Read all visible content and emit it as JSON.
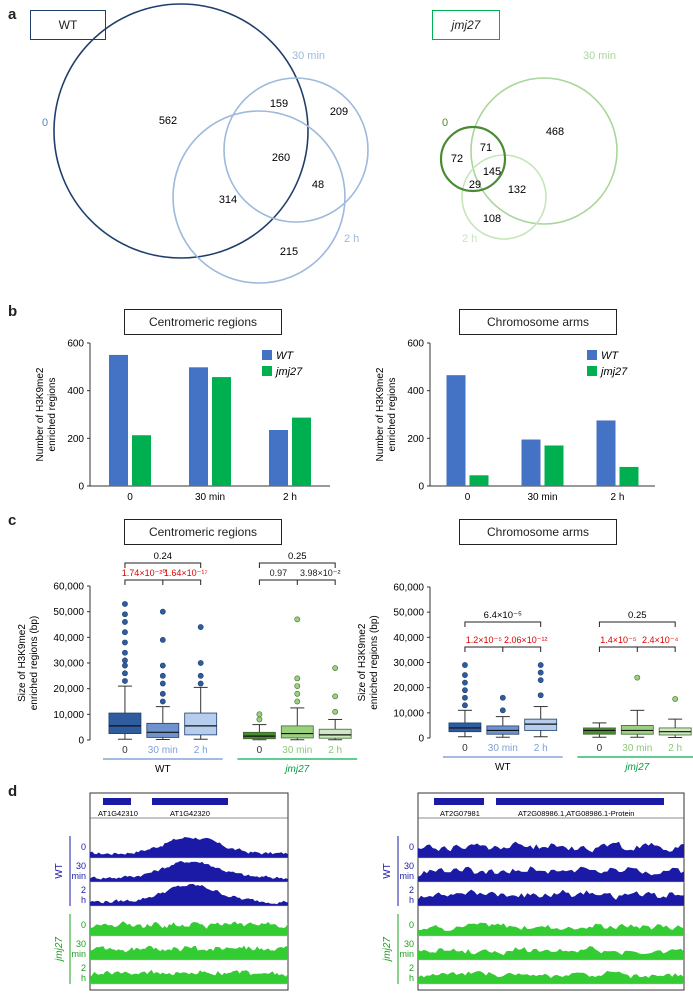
{
  "panel_labels": {
    "a": "a",
    "b": "b",
    "c": "c",
    "d": "d"
  },
  "panel_a": {
    "wt": {
      "title": "WT",
      "set_labels": {
        "s0": "0",
        "s30": "30 min",
        "s2h": "2 h"
      },
      "regions": {
        "only0": "562",
        "only30": "209",
        "only2h": "215",
        "c0_30": "159",
        "c0_2h": "314",
        "c30_2h": "48",
        "all": "260"
      }
    },
    "jmj": {
      "title": "jmj27",
      "set_labels": {
        "s0": "0",
        "s30": "30 min",
        "s2h": "2 h"
      },
      "regions": {
        "only0": "72",
        "only30": "468",
        "only2h": "108",
        "c0_30": "71",
        "c0_2h": "29",
        "c30_2h": "132",
        "all": "145"
      }
    },
    "colors": {
      "wt_dark": "#1f3f6b",
      "wt_light": "#9db9dc",
      "jmj_dark": "#4a8a34",
      "jmj_light": "#a9d69a"
    }
  },
  "panel_b": {
    "colors": {
      "wt": "#4472c4",
      "jmj": "#00b050"
    },
    "chart_data": [
      {
        "type": "bar",
        "title": "Centromeric regions",
        "ylabel": "Number of H3K9me2 enriched regions",
        "categories": [
          "0",
          "30 min",
          "2 h"
        ],
        "series": [
          {
            "name": "WT",
            "values": [
              550,
              498,
              235
            ]
          },
          {
            "name": "jmj27",
            "values": [
              213,
              457,
              287
            ]
          }
        ],
        "ylim": [
          0,
          600
        ],
        "yticks": [
          "0",
          "200",
          "400",
          "600"
        ]
      },
      {
        "type": "bar",
        "title": "Chromosome arms",
        "ylabel": "Number of H3K9me2 enriched regions",
        "categories": [
          "0",
          "30 min",
          "2 h"
        ],
        "series": [
          {
            "name": "WT",
            "values": [
              465,
              195,
              275
            ]
          },
          {
            "name": "jmj27",
            "values": [
              45,
              170,
              80
            ]
          }
        ],
        "ylim": [
          0,
          600
        ],
        "yticks": [
          "0",
          "200",
          "400",
          "600"
        ]
      }
    ]
  },
  "panel_c": {
    "colors": {
      "wt": [
        "#2e5c9e",
        "#6e93cf",
        "#b6cdee"
      ],
      "jmj": [
        "#4a8a34",
        "#9bd07f",
        "#cfe9c2"
      ]
    },
    "chart_data": [
      {
        "type": "box",
        "title": "Centromeric regions",
        "ylabel": "Size of H3K9me2 enriched regions (bp)",
        "ylim": [
          0,
          60000
        ],
        "yticks": [
          "0",
          "10,000",
          "20,000",
          "30,000",
          "40,000",
          "50,000",
          "60,000"
        ],
        "groups": [
          {
            "name": "WT",
            "labels": [
              "0",
              "30 min",
              "2 h"
            ]
          },
          {
            "name": "jmj27",
            "labels": [
              "0",
              "30 min",
              "2 h"
            ]
          }
        ],
        "boxes": [
          {
            "q1": 2500,
            "med": 5500,
            "q3": 10500,
            "wlo": 300,
            "whi": 21000,
            "outliers": [
              23000,
              26000,
              29000,
              31000,
              34000,
              38000,
              42000,
              46000,
              49000,
              53000
            ]
          },
          {
            "q1": 1000,
            "med": 3000,
            "q3": 6500,
            "wlo": 200,
            "whi": 13000,
            "outliers": [
              15000,
              18000,
              22000,
              25000,
              29000,
              39000,
              50000
            ]
          },
          {
            "q1": 2000,
            "med": 5500,
            "q3": 10500,
            "wlo": 300,
            "whi": 20500,
            "outliers": [
              22000,
              25000,
              30000,
              44000
            ]
          },
          {
            "q1": 500,
            "med": 1500,
            "q3": 3000,
            "wlo": 100,
            "whi": 6000,
            "outliers": [
              8000,
              10000
            ]
          },
          {
            "q1": 800,
            "med": 2500,
            "q3": 5500,
            "wlo": 100,
            "whi": 12500,
            "outliers": [
              15000,
              18000,
              21000,
              24000,
              47000
            ]
          },
          {
            "q1": 700,
            "med": 2000,
            "q3": 4200,
            "wlo": 100,
            "whi": 8000,
            "outliers": [
              11000,
              17000,
              28000
            ]
          }
        ],
        "stats": {
          "top_wt": "0.24",
          "wt_a": "1.74×10⁻²⁰",
          "wt_b": "1.64×10⁻¹⁷",
          "top_jmj": "0.25",
          "jmj_a": "0.97",
          "jmj_b": "3.98×10⁻²"
        }
      },
      {
        "type": "box",
        "title": "Chromosome arms",
        "ylabel": "Size of H3K9me2 enriched regions (bp)",
        "ylim": [
          0,
          60000
        ],
        "yticks": [
          "0",
          "10,000",
          "20,000",
          "30,000",
          "40,000",
          "50,000",
          "60,000"
        ],
        "groups": [
          {
            "name": "WT",
            "labels": [
              "0",
              "30 min",
              "2 h"
            ]
          },
          {
            "name": "jmj27",
            "labels": [
              "0",
              "30 min",
              "2 h"
            ]
          }
        ],
        "boxes": [
          {
            "q1": 2500,
            "med": 4000,
            "q3": 6000,
            "wlo": 500,
            "whi": 11000,
            "outliers": [
              13000,
              16000,
              19000,
              22000,
              25000,
              29000
            ]
          },
          {
            "q1": 1500,
            "med": 3000,
            "q3": 4800,
            "wlo": 300,
            "whi": 8500,
            "outliers": [
              11000,
              16000
            ]
          },
          {
            "q1": 3000,
            "med": 5500,
            "q3": 7500,
            "wlo": 500,
            "whi": 12500,
            "outliers": [
              17000,
              23000,
              26000,
              29000
            ]
          },
          {
            "q1": 1500,
            "med": 3000,
            "q3": 4000,
            "wlo": 300,
            "whi": 6000,
            "outliers": []
          },
          {
            "q1": 1500,
            "med": 3000,
            "q3": 5000,
            "wlo": 300,
            "whi": 11000,
            "outliers": [
              24000
            ]
          },
          {
            "q1": 1200,
            "med": 2500,
            "q3": 4000,
            "wlo": 200,
            "whi": 7500,
            "outliers": [
              15500
            ]
          }
        ],
        "stats": {
          "top_wt": "6.4×10⁻⁵",
          "wt_a": "1.2×10⁻⁵",
          "wt_b": "2.06×10⁻¹²",
          "top_jmj": "0.25",
          "jmj_a": "1.4×10⁻⁵",
          "jmj_b": "2.4×10⁻⁴"
        }
      }
    ]
  },
  "panel_d": {
    "left": {
      "genes": [
        "AT1G42310",
        "AT1G42320"
      ],
      "wt_tracks": [
        "0",
        "30 min",
        "2 h"
      ],
      "jmj_tracks": [
        "0",
        "30 min",
        "2 h"
      ]
    },
    "right": {
      "genes": [
        "AT2G07981",
        "AT2G08986.1,ATG08986.1-Protein"
      ],
      "wt_tracks": [
        "0",
        "30 min",
        "2 h"
      ],
      "jmj_tracks": [
        "0",
        "30 min",
        "2 h"
      ]
    },
    "group_labels": {
      "wt": "WT",
      "jmj": "jmj27"
    },
    "colors": {
      "wt": "#1a1aa6",
      "jmj": "#33cc33"
    }
  }
}
